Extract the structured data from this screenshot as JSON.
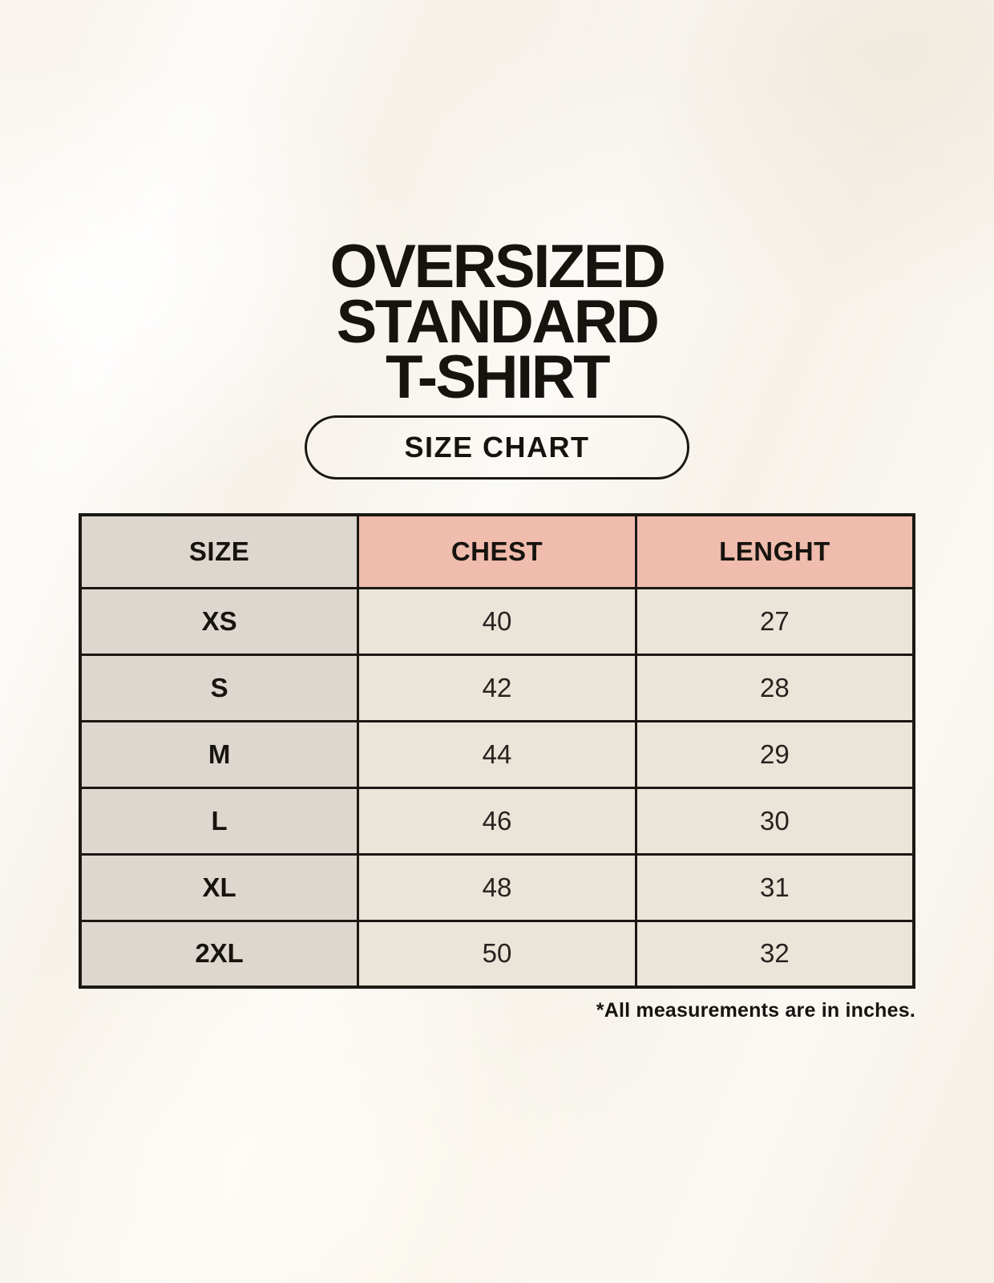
{
  "page": {
    "title_lines": [
      "OVERSIZED",
      "STANDARD",
      "T-SHIRT"
    ],
    "badge_label": "SIZE CHART",
    "footnote": "*All measurements are in inches."
  },
  "chart_data": {
    "type": "table",
    "title": "OVERSIZED STANDARD T-SHIRT",
    "subtitle": "SIZE CHART",
    "columns": [
      "SIZE",
      "CHEST",
      "LENGHT"
    ],
    "rows": [
      {
        "size": "XS",
        "chest": "40",
        "length": "27"
      },
      {
        "size": "S",
        "chest": "42",
        "length": "28"
      },
      {
        "size": "M",
        "chest": "44",
        "length": "29"
      },
      {
        "size": "L",
        "chest": "46",
        "length": "30"
      },
      {
        "size": "XL",
        "chest": "48",
        "length": "31"
      },
      {
        "size": "2XL",
        "chest": "50",
        "length": "32"
      }
    ],
    "units": "inches",
    "note": "*All measurements are in inches."
  },
  "colors": {
    "background": "#f9f5ee",
    "size_header_bg": "#ded7d0",
    "measure_header_bg": "#efbcad",
    "size_col_bg": "#ded7d0",
    "value_cell_bg": "#ebe4d9",
    "table_border": "#1b1814",
    "text": "#17140f"
  }
}
